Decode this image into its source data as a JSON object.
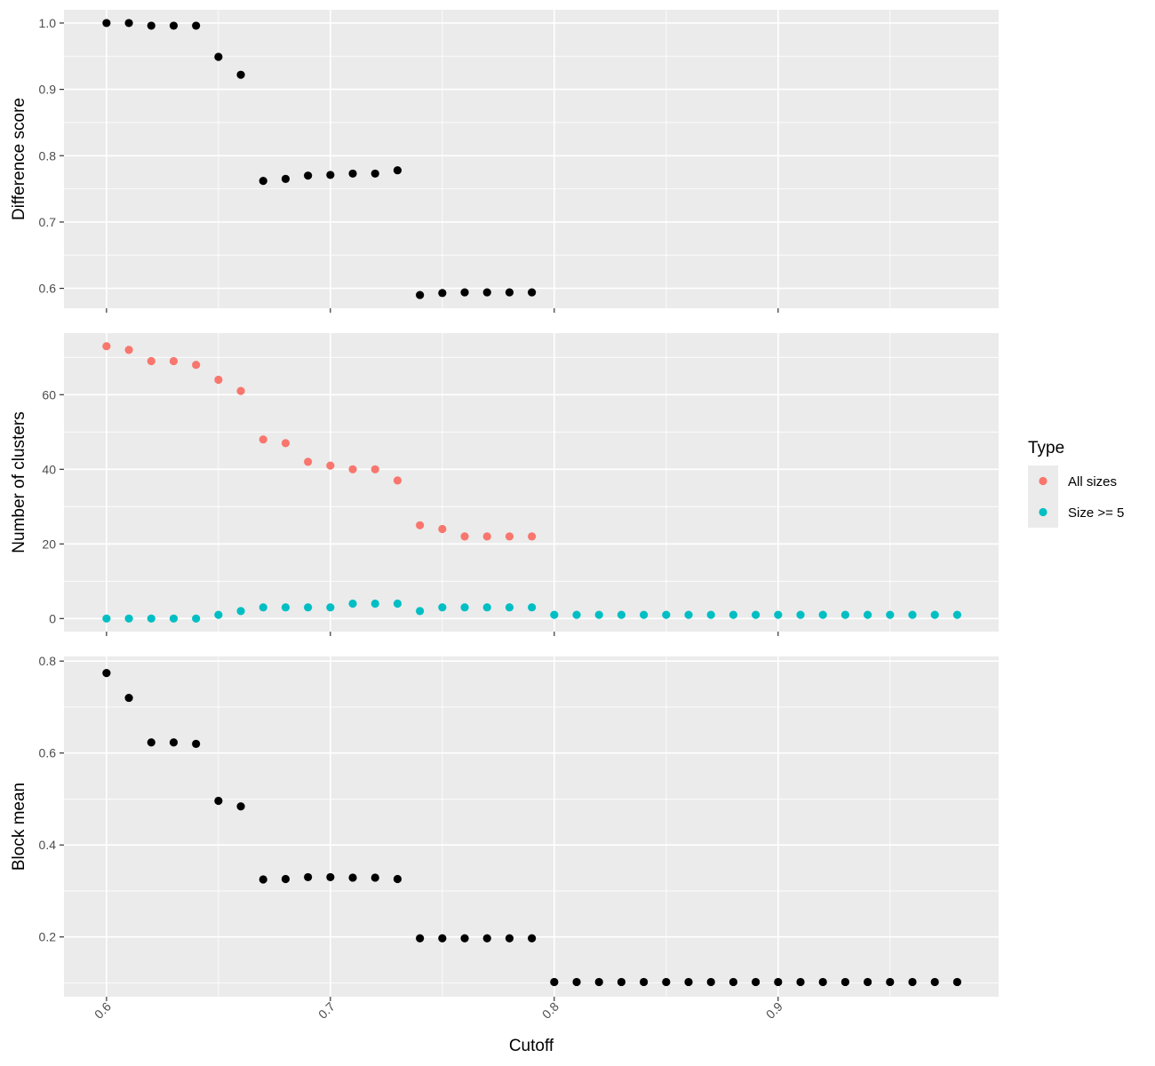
{
  "chart_data": {
    "type": "scatter",
    "xlabel": "Cutoff",
    "x_ticks": [
      "0.6",
      "0.7",
      "0.8",
      "0.9"
    ],
    "x_tick_values": [
      0.6,
      0.7,
      0.8,
      0.9
    ],
    "xlim": [
      0.581,
      0.9985
    ],
    "background": "panel-grey-white-grid",
    "grid": true,
    "legend": {
      "title": "Type",
      "placement": "right",
      "entries": [
        {
          "label": "All sizes",
          "color": "#F8766D"
        },
        {
          "label": "Size >= 5",
          "color": "#00BFC4"
        }
      ]
    },
    "panels": [
      {
        "ylabel": "Difference score",
        "ylim": [
          0.57,
          1.02
        ],
        "y_ticks": [
          "0.6",
          "0.7",
          "0.8",
          "0.9",
          "1.0"
        ],
        "y_tick_values": [
          0.6,
          0.7,
          0.8,
          0.9,
          1.0
        ],
        "series": [
          {
            "color": "#000000",
            "x": [
              0.6,
              0.61,
              0.62,
              0.63,
              0.64,
              0.65,
              0.66,
              0.67,
              0.68,
              0.69,
              0.7,
              0.71,
              0.72,
              0.73,
              0.74,
              0.75,
              0.76,
              0.77,
              0.78,
              0.79
            ],
            "y": [
              1.0,
              1.0,
              0.996,
              0.996,
              0.996,
              0.949,
              0.922,
              0.762,
              0.765,
              0.77,
              0.771,
              0.773,
              0.773,
              0.778,
              0.59,
              0.593,
              0.594,
              0.594,
              0.594,
              0.594
            ]
          }
        ]
      },
      {
        "ylabel": "Number of clusters",
        "ylim": [
          -3.5,
          76.5
        ],
        "y_ticks": [
          "0",
          "20",
          "40",
          "60"
        ],
        "y_tick_values": [
          0,
          20,
          40,
          60
        ],
        "series": [
          {
            "name": "All sizes",
            "color": "#F8766D",
            "x": [
              0.6,
              0.61,
              0.62,
              0.63,
              0.64,
              0.65,
              0.66,
              0.67,
              0.68,
              0.69,
              0.7,
              0.71,
              0.72,
              0.73,
              0.74,
              0.75,
              0.76,
              0.77,
              0.78,
              0.79
            ],
            "y": [
              73,
              72,
              69,
              69,
              68,
              64,
              61,
              48,
              47,
              42,
              41,
              40,
              40,
              37,
              25,
              24,
              22,
              22,
              22,
              22
            ]
          },
          {
            "name": "Size >= 5",
            "color": "#00BFC4",
            "x": [
              0.6,
              0.61,
              0.62,
              0.63,
              0.64,
              0.65,
              0.66,
              0.67,
              0.68,
              0.69,
              0.7,
              0.71,
              0.72,
              0.73,
              0.74,
              0.75,
              0.76,
              0.77,
              0.78,
              0.79,
              0.8,
              0.81,
              0.82,
              0.83,
              0.84,
              0.85,
              0.86,
              0.87,
              0.88,
              0.89,
              0.9,
              0.91,
              0.92,
              0.93,
              0.94,
              0.95,
              0.96,
              0.97,
              0.98
            ],
            "y": [
              0,
              0,
              0,
              0,
              0,
              1,
              2,
              3,
              3,
              3,
              3,
              4,
              4,
              4,
              2,
              3,
              3,
              3,
              3,
              3,
              1,
              1,
              1,
              1,
              1,
              1,
              1,
              1,
              1,
              1,
              1,
              1,
              1,
              1,
              1,
              1,
              1,
              1,
              1
            ]
          }
        ]
      },
      {
        "ylabel": "Block mean",
        "ylim": [
          0.07,
          0.81
        ],
        "y_ticks": [
          "0.2",
          "0.4",
          "0.6",
          "0.8"
        ],
        "y_tick_values": [
          0.2,
          0.4,
          0.6,
          0.8
        ],
        "series": [
          {
            "color": "#000000",
            "x": [
              0.6,
              0.61,
              0.62,
              0.63,
              0.64,
              0.65,
              0.66,
              0.67,
              0.68,
              0.69,
              0.7,
              0.71,
              0.72,
              0.73,
              0.74,
              0.75,
              0.76,
              0.77,
              0.78,
              0.79,
              0.8,
              0.81,
              0.82,
              0.83,
              0.84,
              0.85,
              0.86,
              0.87,
              0.88,
              0.89,
              0.9,
              0.91,
              0.92,
              0.93,
              0.94,
              0.95,
              0.96,
              0.97,
              0.98
            ],
            "y": [
              0.774,
              0.72,
              0.623,
              0.623,
              0.62,
              0.496,
              0.484,
              0.325,
              0.326,
              0.33,
              0.33,
              0.329,
              0.329,
              0.326,
              0.197,
              0.197,
              0.197,
              0.197,
              0.197,
              0.197,
              0.102,
              0.102,
              0.102,
              0.102,
              0.102,
              0.102,
              0.102,
              0.102,
              0.102,
              0.102,
              0.102,
              0.102,
              0.102,
              0.102,
              0.102,
              0.102,
              0.102,
              0.102,
              0.102
            ]
          }
        ]
      }
    ]
  }
}
